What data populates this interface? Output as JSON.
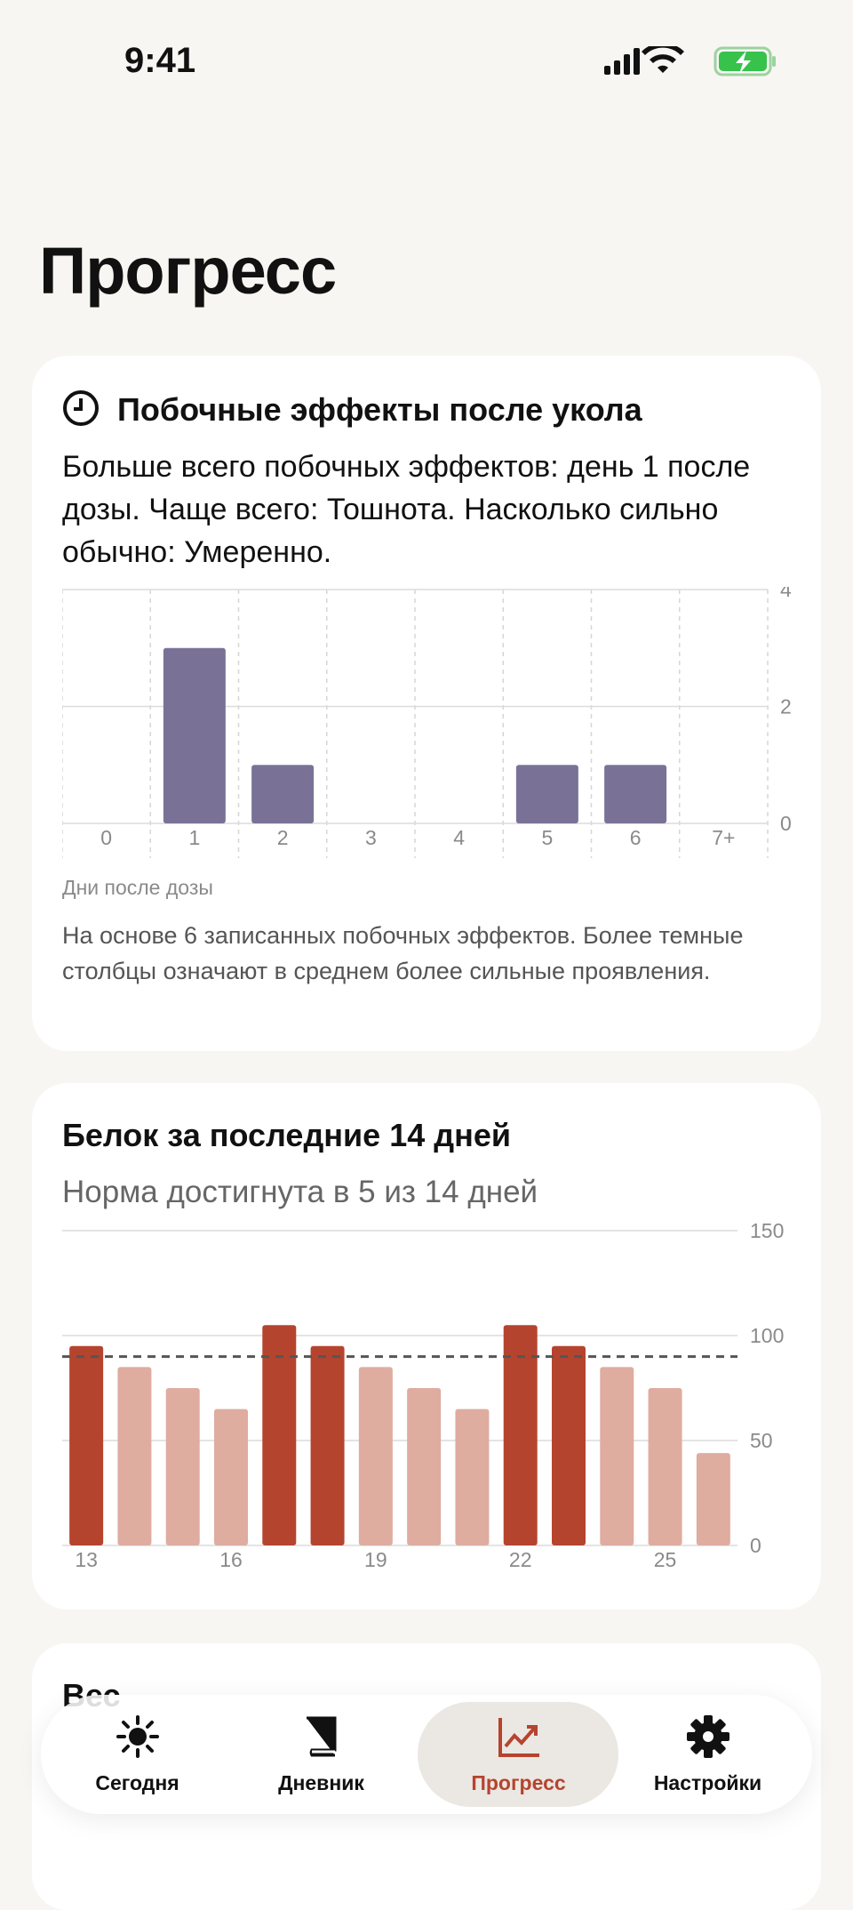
{
  "status_bar": {
    "time": "9:41"
  },
  "header": {
    "title": "Прогресс"
  },
  "chart_data": [
    {
      "type": "bar",
      "title": "Побочные эффекты после укола",
      "subtitle": "Больше всего побочных эффектов: день 1 после дозы. Чаще всего: Тошнота. Насколько сильно обычно: Умеренно.",
      "categories": [
        "0",
        "1",
        "2",
        "3",
        "4",
        "5",
        "6",
        "7+"
      ],
      "values": [
        0,
        3,
        1,
        0,
        0,
        1,
        1,
        0
      ],
      "color": "#7a7296",
      "ylim": [
        0,
        4
      ],
      "yticks": [
        0,
        2,
        4
      ],
      "grid": true,
      "vertical_grid": true,
      "xlabel": "Дни после дозы",
      "note": "На основе 6 записанных побочных эффектов. Более темные столбцы означают в среднем более сильные проявления."
    },
    {
      "type": "bar",
      "title": "Белок за последние 14 дней",
      "subtitle": "Норма достигнута в 5 из 14 дней",
      "categories": [
        "13",
        null,
        null,
        "16",
        null,
        null,
        "19",
        null,
        null,
        "22",
        null,
        null,
        "25",
        null
      ],
      "values": [
        95,
        85,
        75,
        65,
        105,
        95,
        85,
        75,
        65,
        105,
        95,
        85,
        75,
        44
      ],
      "goal": 90,
      "met_color": "#b5442f",
      "unmet_color": "#dfaca0",
      "ylim": [
        0,
        150
      ],
      "yticks": [
        0,
        50,
        100,
        150
      ],
      "grid": true,
      "vertical_grid": false
    }
  ],
  "weight": {
    "title": "Вес"
  },
  "tab_bar": {
    "active": 2,
    "items": [
      {
        "label": "Сегодня"
      },
      {
        "label": "Дневник"
      },
      {
        "label": "Прогресс"
      },
      {
        "label": "Настройки"
      }
    ]
  }
}
